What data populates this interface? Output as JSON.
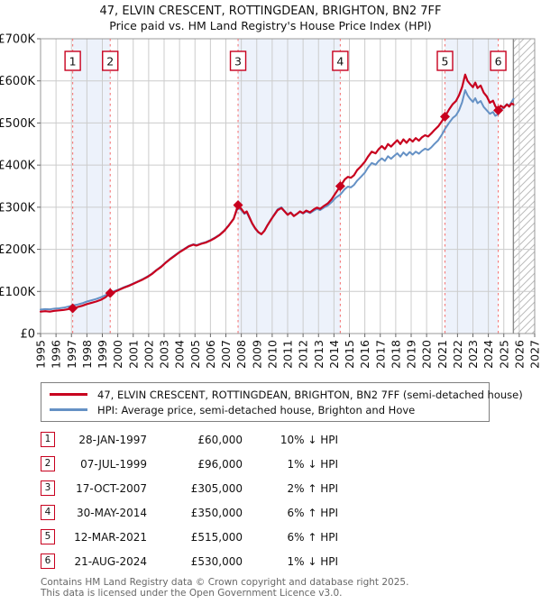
{
  "page": {
    "title": "47, ELVIN CRESCENT, ROTTINGDEAN, BRIGHTON, BN2 7FF",
    "subtitle": "Price paid vs. HM Land Registry's House Price Index (HPI)"
  },
  "chart_data": {
    "type": "line",
    "title": "47, ELVIN CRESCENT, ROTTINGDEAN, BRIGHTON, BN2 7FF",
    "subtitle": "Price paid vs. HM Land Registry's House Price Index (HPI)",
    "xlabel": "",
    "ylabel": "",
    "xlim": [
      1995,
      2027
    ],
    "ylim_gbp": [
      0,
      700000
    ],
    "grid": true,
    "legend_position": "below",
    "values_unit": "GBP thousands",
    "x_ticks": [
      1995,
      1996,
      1997,
      1998,
      1999,
      2000,
      2001,
      2002,
      2003,
      2004,
      2005,
      2006,
      2007,
      2008,
      2009,
      2010,
      2011,
      2012,
      2013,
      2014,
      2015,
      2016,
      2017,
      2018,
      2019,
      2020,
      2021,
      2022,
      2023,
      2024,
      2025,
      2026,
      2027
    ],
    "y_ticks": [
      {
        "value": 0,
        "label": "£0"
      },
      {
        "value": 100,
        "label": "£100K"
      },
      {
        "value": 200,
        "label": "£200K"
      },
      {
        "value": 300,
        "label": "£300K"
      },
      {
        "value": 400,
        "label": "£400K"
      },
      {
        "value": 500,
        "label": "£500K"
      },
      {
        "value": 600,
        "label": "£600K"
      },
      {
        "value": 700,
        "label": "£700K"
      }
    ],
    "series": [
      {
        "name": "47, ELVIN CRESCENT, ROTTINGDEAN, BRIGHTON, BN2 7FF (semi-detached house)",
        "color": "#c8001e",
        "width": 2.2,
        "points": [
          [
            1995.0,
            52
          ],
          [
            1995.3,
            53
          ],
          [
            1995.6,
            52
          ],
          [
            1995.9,
            54
          ],
          [
            1996.2,
            55
          ],
          [
            1996.5,
            56
          ],
          [
            1996.8,
            58
          ],
          [
            1997.08,
            60
          ],
          [
            1997.4,
            63
          ],
          [
            1997.7,
            66
          ],
          [
            1998.0,
            70
          ],
          [
            1998.3,
            73
          ],
          [
            1998.6,
            76
          ],
          [
            1998.9,
            80
          ],
          [
            1999.2,
            86
          ],
          [
            1999.51,
            96
          ],
          [
            1999.8,
            99
          ],
          [
            2000.1,
            104
          ],
          [
            2000.4,
            109
          ],
          [
            2000.7,
            113
          ],
          [
            2001.0,
            118
          ],
          [
            2001.3,
            123
          ],
          [
            2001.6,
            128
          ],
          [
            2001.9,
            134
          ],
          [
            2002.2,
            141
          ],
          [
            2002.5,
            150
          ],
          [
            2002.8,
            158
          ],
          [
            2003.1,
            168
          ],
          [
            2003.4,
            177
          ],
          [
            2003.7,
            185
          ],
          [
            2004.0,
            193
          ],
          [
            2004.3,
            200
          ],
          [
            2004.6,
            207
          ],
          [
            2004.9,
            211
          ],
          [
            2005.1,
            209
          ],
          [
            2005.4,
            213
          ],
          [
            2005.7,
            216
          ],
          [
            2006.0,
            221
          ],
          [
            2006.3,
            227
          ],
          [
            2006.6,
            234
          ],
          [
            2006.9,
            244
          ],
          [
            2007.2,
            257
          ],
          [
            2007.5,
            272
          ],
          [
            2007.79,
            305
          ],
          [
            2008.0,
            296
          ],
          [
            2008.2,
            286
          ],
          [
            2008.35,
            290
          ],
          [
            2008.5,
            278
          ],
          [
            2008.7,
            262
          ],
          [
            2008.9,
            250
          ],
          [
            2009.1,
            241
          ],
          [
            2009.3,
            236
          ],
          [
            2009.5,
            244
          ],
          [
            2009.7,
            257
          ],
          [
            2009.9,
            269
          ],
          [
            2010.1,
            280
          ],
          [
            2010.35,
            293
          ],
          [
            2010.6,
            298
          ],
          [
            2010.8,
            290
          ],
          [
            2011.0,
            282
          ],
          [
            2011.2,
            287
          ],
          [
            2011.4,
            279
          ],
          [
            2011.6,
            284
          ],
          [
            2011.8,
            290
          ],
          [
            2012.0,
            286
          ],
          [
            2012.2,
            292
          ],
          [
            2012.45,
            288
          ],
          [
            2012.7,
            295
          ],
          [
            2012.9,
            299
          ],
          [
            2013.1,
            296
          ],
          [
            2013.35,
            303
          ],
          [
            2013.6,
            309
          ],
          [
            2013.85,
            319
          ],
          [
            2014.1,
            333
          ],
          [
            2014.41,
            350
          ],
          [
            2014.7,
            366
          ],
          [
            2014.9,
            372
          ],
          [
            2015.1,
            370
          ],
          [
            2015.3,
            376
          ],
          [
            2015.5,
            388
          ],
          [
            2015.75,
            397
          ],
          [
            2016.0,
            408
          ],
          [
            2016.2,
            420
          ],
          [
            2016.45,
            432
          ],
          [
            2016.7,
            428
          ],
          [
            2016.9,
            438
          ],
          [
            2017.1,
            445
          ],
          [
            2017.3,
            438
          ],
          [
            2017.5,
            450
          ],
          [
            2017.7,
            444
          ],
          [
            2017.9,
            452
          ],
          [
            2018.1,
            459
          ],
          [
            2018.3,
            450
          ],
          [
            2018.5,
            461
          ],
          [
            2018.7,
            453
          ],
          [
            2018.9,
            462
          ],
          [
            2019.1,
            456
          ],
          [
            2019.3,
            464
          ],
          [
            2019.5,
            458
          ],
          [
            2019.7,
            466
          ],
          [
            2019.9,
            471
          ],
          [
            2020.1,
            468
          ],
          [
            2020.3,
            475
          ],
          [
            2020.5,
            483
          ],
          [
            2020.75,
            492
          ],
          [
            2021.0,
            505
          ],
          [
            2021.19,
            515
          ],
          [
            2021.45,
            532
          ],
          [
            2021.7,
            545
          ],
          [
            2021.9,
            552
          ],
          [
            2022.1,
            566
          ],
          [
            2022.3,
            585
          ],
          [
            2022.5,
            615
          ],
          [
            2022.65,
            600
          ],
          [
            2022.8,
            593
          ],
          [
            2023.0,
            585
          ],
          [
            2023.15,
            596
          ],
          [
            2023.3,
            583
          ],
          [
            2023.5,
            589
          ],
          [
            2023.7,
            572
          ],
          [
            2023.9,
            563
          ],
          [
            2024.1,
            548
          ],
          [
            2024.3,
            553
          ],
          [
            2024.45,
            540
          ],
          [
            2024.64,
            530
          ],
          [
            2024.8,
            541
          ],
          [
            2025.0,
            536
          ],
          [
            2025.2,
            544
          ],
          [
            2025.35,
            539
          ],
          [
            2025.5,
            546
          ],
          [
            2025.62,
            544
          ]
        ]
      },
      {
        "name": "HPI: Average price, semi-detached house, Brighton and Hove",
        "color": "#6591c5",
        "width": 2,
        "points": [
          [
            1995.0,
            57
          ],
          [
            1995.3,
            58
          ],
          [
            1995.6,
            57.5
          ],
          [
            1995.9,
            59
          ],
          [
            1996.2,
            60
          ],
          [
            1996.5,
            61.5
          ],
          [
            1996.8,
            64
          ],
          [
            1997.08,
            66.5
          ],
          [
            1997.4,
            69
          ],
          [
            1997.7,
            72
          ],
          [
            1998.0,
            76
          ],
          [
            1998.3,
            79
          ],
          [
            1998.6,
            82
          ],
          [
            1998.9,
            86
          ],
          [
            1999.2,
            91
          ],
          [
            1999.51,
            97
          ],
          [
            1999.8,
            101
          ],
          [
            2000.1,
            105
          ],
          [
            2000.4,
            110
          ],
          [
            2000.7,
            114
          ],
          [
            2001.0,
            119
          ],
          [
            2001.3,
            124
          ],
          [
            2001.6,
            129
          ],
          [
            2001.9,
            135
          ],
          [
            2002.2,
            142
          ],
          [
            2002.5,
            151
          ],
          [
            2002.8,
            159
          ],
          [
            2003.1,
            169
          ],
          [
            2003.4,
            178
          ],
          [
            2003.7,
            186
          ],
          [
            2004.0,
            194
          ],
          [
            2004.3,
            201
          ],
          [
            2004.6,
            208
          ],
          [
            2004.9,
            212
          ],
          [
            2005.1,
            210
          ],
          [
            2005.4,
            214
          ],
          [
            2005.7,
            217
          ],
          [
            2006.0,
            222
          ],
          [
            2006.3,
            228
          ],
          [
            2006.6,
            235
          ],
          [
            2006.9,
            245
          ],
          [
            2007.2,
            258
          ],
          [
            2007.5,
            273
          ],
          [
            2007.79,
            299
          ],
          [
            2008.0,
            293
          ],
          [
            2008.2,
            284
          ],
          [
            2008.35,
            288
          ],
          [
            2008.5,
            276
          ],
          [
            2008.7,
            261
          ],
          [
            2008.9,
            249
          ],
          [
            2009.1,
            240
          ],
          [
            2009.3,
            236
          ],
          [
            2009.5,
            245
          ],
          [
            2009.7,
            258
          ],
          [
            2009.9,
            270
          ],
          [
            2010.1,
            281
          ],
          [
            2010.35,
            295
          ],
          [
            2010.6,
            300
          ],
          [
            2010.8,
            291
          ],
          [
            2011.0,
            283
          ],
          [
            2011.2,
            288
          ],
          [
            2011.4,
            280
          ],
          [
            2011.6,
            284
          ],
          [
            2011.8,
            289
          ],
          [
            2012.0,
            285
          ],
          [
            2012.2,
            290
          ],
          [
            2012.45,
            286
          ],
          [
            2012.7,
            292
          ],
          [
            2012.9,
            296
          ],
          [
            2013.1,
            293
          ],
          [
            2013.35,
            299
          ],
          [
            2013.6,
            304
          ],
          [
            2013.85,
            312
          ],
          [
            2014.1,
            322
          ],
          [
            2014.41,
            330
          ],
          [
            2014.7,
            343
          ],
          [
            2014.9,
            349
          ],
          [
            2015.1,
            347
          ],
          [
            2015.3,
            353
          ],
          [
            2015.5,
            363
          ],
          [
            2015.75,
            372
          ],
          [
            2016.0,
            382
          ],
          [
            2016.2,
            394
          ],
          [
            2016.45,
            405
          ],
          [
            2016.7,
            401
          ],
          [
            2016.9,
            410
          ],
          [
            2017.1,
            416
          ],
          [
            2017.3,
            410
          ],
          [
            2017.5,
            421
          ],
          [
            2017.7,
            415
          ],
          [
            2017.9,
            422
          ],
          [
            2018.1,
            428
          ],
          [
            2018.3,
            420
          ],
          [
            2018.5,
            430
          ],
          [
            2018.7,
            423
          ],
          [
            2018.9,
            431
          ],
          [
            2019.1,
            425
          ],
          [
            2019.3,
            432
          ],
          [
            2019.5,
            427
          ],
          [
            2019.7,
            434
          ],
          [
            2019.9,
            439
          ],
          [
            2020.1,
            436
          ],
          [
            2020.3,
            442
          ],
          [
            2020.5,
            450
          ],
          [
            2020.75,
            459
          ],
          [
            2021.0,
            473
          ],
          [
            2021.19,
            486
          ],
          [
            2021.45,
            500
          ],
          [
            2021.7,
            512
          ],
          [
            2021.9,
            518
          ],
          [
            2022.1,
            530
          ],
          [
            2022.3,
            549
          ],
          [
            2022.5,
            578
          ],
          [
            2022.65,
            566
          ],
          [
            2022.8,
            558
          ],
          [
            2023.0,
            550
          ],
          [
            2023.15,
            559
          ],
          [
            2023.3,
            547
          ],
          [
            2023.5,
            552
          ],
          [
            2023.7,
            538
          ],
          [
            2023.9,
            530
          ],
          [
            2024.1,
            522
          ],
          [
            2024.3,
            526
          ],
          [
            2024.45,
            517
          ],
          [
            2024.64,
            521
          ],
          [
            2024.8,
            530
          ],
          [
            2025.0,
            537
          ],
          [
            2025.2,
            545
          ],
          [
            2025.35,
            541
          ],
          [
            2025.5,
            550
          ],
          [
            2025.62,
            557
          ]
        ]
      }
    ],
    "sales": [
      {
        "n": "1",
        "year": 1997.08,
        "date": "28-JAN-1997",
        "price": 60000,
        "price_label": "£60,000",
        "vs_hpi": "10% ↓ HPI"
      },
      {
        "n": "2",
        "year": 1999.51,
        "date": "07-JUL-1999",
        "price": 96000,
        "price_label": "£96,000",
        "vs_hpi": "1% ↓ HPI"
      },
      {
        "n": "3",
        "year": 2007.79,
        "date": "17-OCT-2007",
        "price": 305000,
        "price_label": "£305,000",
        "vs_hpi": "2% ↑ HPI"
      },
      {
        "n": "4",
        "year": 2014.41,
        "date": "30-MAY-2014",
        "price": 350000,
        "price_label": "£350,000",
        "vs_hpi": "6% ↑ HPI"
      },
      {
        "n": "5",
        "year": 2021.19,
        "date": "12-MAR-2021",
        "price": 515000,
        "price_label": "£515,000",
        "vs_hpi": "6% ↑ HPI"
      },
      {
        "n": "6",
        "year": 2024.64,
        "date": "21-AUG-2024",
        "price": 530000,
        "price_label": "£530,000",
        "vs_hpi": "1% ↓ HPI"
      }
    ],
    "shaded_bands": [
      [
        1997.08,
        1999.51
      ],
      [
        2007.79,
        2014.41
      ],
      [
        2021.19,
        2024.64
      ]
    ],
    "hatch_start": 2025.62,
    "colors": {
      "price_line": "#c8001e",
      "hpi_line": "#6591c5",
      "band_fill": "#edf2fb",
      "grid": "#cccccc",
      "plot_border": "#999999",
      "sale_dash": "#f57878",
      "hatch_line": "#bcbcbc",
      "hatch_edge": "#8a8a8a",
      "marker_box_border": "#c8001e",
      "diamond": "#c8001e"
    }
  },
  "footer": {
    "line1": "Contains HM Land Registry data © Crown copyright and database right 2025.",
    "line2": "This data is licensed under the Open Government Licence v3.0."
  }
}
